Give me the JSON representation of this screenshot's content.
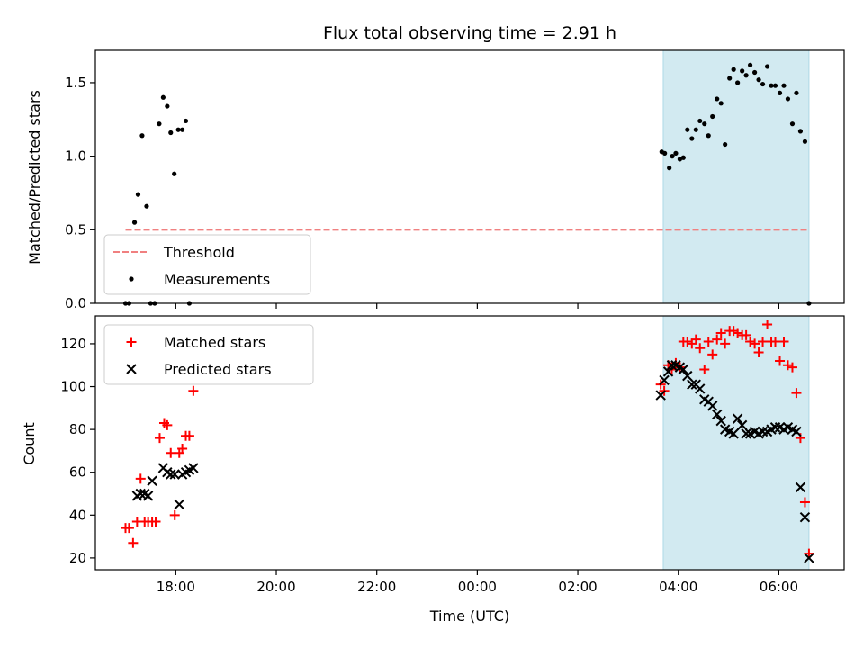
{
  "chart_data": {
    "title": "Flux total observing time = 2.91 h",
    "xlabel": "Time (UTC)",
    "x_ticks": [
      "18:00",
      "20:00",
      "22:00",
      "00:00",
      "02:00",
      "04:00",
      "06:00"
    ],
    "x_tick_hours": [
      18,
      20,
      22,
      24,
      26,
      28,
      30
    ],
    "xlim_hours": [
      16.4,
      31.3
    ],
    "x_unit_note": "hours UTC continuing past midnight",
    "shaded_region_hours": [
      27.7,
      30.6
    ],
    "shaded_color": "#add8e6",
    "panels": [
      {
        "type": "scatter",
        "ylabel": "Matched/Predicted stars",
        "ylim": [
          0,
          1.72
        ],
        "y_ticks": [
          0.0,
          0.5,
          1.0,
          1.5
        ],
        "y_tick_labels": [
          "0.0",
          "0.5",
          "1.0",
          "1.5"
        ],
        "threshold": {
          "name": "Threshold",
          "value": 0.5,
          "x_range_hours": [
            17.0,
            30.6
          ],
          "color": "#f08080"
        },
        "legend": {
          "position": "lower-left",
          "entries": [
            "Threshold",
            "Measurements"
          ]
        },
        "series": [
          {
            "name": "Measurements",
            "color": "#000000",
            "marker": "dot",
            "x": [
              17.0,
              17.07,
              17.18,
              17.25,
              17.33,
              17.42,
              17.5,
              17.58,
              17.67,
              17.75,
              17.83,
              17.9,
              17.97,
              18.05,
              18.13,
              18.2,
              18.27,
              27.67,
              27.73,
              27.82,
              27.88,
              27.95,
              28.03,
              28.1,
              28.18,
              28.27,
              28.35,
              28.43,
              28.52,
              28.6,
              28.68,
              28.77,
              28.85,
              28.93,
              29.02,
              29.1,
              29.18,
              29.27,
              29.35,
              29.43,
              29.52,
              29.6,
              29.68,
              29.77,
              29.85,
              29.93,
              30.02,
              30.1,
              30.18,
              30.27,
              30.35,
              30.43,
              30.52,
              30.6
            ],
            "y": [
              0.0,
              0.0,
              0.55,
              0.74,
              1.14,
              0.66,
              0.0,
              0.0,
              1.22,
              1.4,
              1.34,
              1.16,
              0.88,
              1.18,
              1.18,
              1.24,
              0,
              1.03,
              1.02,
              0.92,
              1.0,
              1.02,
              0.98,
              0.99,
              1.18,
              1.12,
              1.18,
              1.24,
              1.22,
              1.14,
              1.27,
              1.39,
              1.36,
              1.08,
              1.53,
              1.59,
              1.5,
              1.58,
              1.55,
              1.62,
              1.57,
              1.52,
              1.49,
              1.61,
              1.48,
              1.48,
              1.43,
              1.48,
              1.39,
              1.22,
              1.43,
              1.17,
              1.1,
              0
            ],
            "note": "placeholder"
          }
        ]
      },
      {
        "type": "scatter",
        "ylabel": "Count",
        "ylim": [
          14.5,
          133
        ],
        "y_ticks": [
          20,
          40,
          60,
          80,
          100,
          120
        ],
        "y_tick_labels": [
          "20",
          "40",
          "60",
          "80",
          "100",
          "120"
        ],
        "legend": {
          "position": "upper-left",
          "entries": [
            "Matched stars",
            "Predicted stars"
          ]
        },
        "series": [
          {
            "name": "Matched stars",
            "color": "#ff0000",
            "marker": "plus",
            "x": [
              17.0,
              17.07,
              17.15,
              17.23,
              17.3,
              17.38,
              17.45,
              17.53,
              17.6,
              17.68,
              17.77,
              17.83,
              17.9,
              17.98,
              18.07,
              18.13,
              18.2,
              18.27,
              18.35,
              27.65,
              27.72,
              27.8,
              27.87,
              27.95,
              28.03,
              28.1,
              28.18,
              28.27,
              28.35,
              28.43,
              28.52,
              28.6,
              28.68,
              28.77,
              28.85,
              28.93,
              29.02,
              29.1,
              29.18,
              29.27,
              29.35,
              29.43,
              29.52,
              29.6,
              29.68,
              29.77,
              29.85,
              29.93,
              30.02,
              30.1,
              30.18,
              30.27,
              30.35,
              30.43,
              30.52,
              30.6
            ],
            "y": [
              34,
              34,
              27,
              37,
              57,
              37,
              37,
              37,
              37,
              76,
              83,
              82,
              69,
              40,
              69,
              71,
              77,
              77,
              98,
              101,
              98,
              110,
              108,
              111,
              109,
              121,
              121,
              120,
              122,
              118,
              108,
              121,
              115,
              122,
              125,
              120,
              126,
              126,
              125,
              124,
              124,
              121,
              120,
              116,
              121,
              129,
              121,
              121,
              112,
              121,
              110,
              109,
              97,
              76,
              46,
              22
            ]
          },
          {
            "name": "Predicted stars",
            "color": "#000000",
            "marker": "cross",
            "x": [
              17.23,
              17.3,
              17.38,
              17.45,
              17.53,
              17.75,
              17.83,
              17.9,
              17.98,
              18.07,
              18.13,
              18.2,
              18.27,
              18.35,
              27.65,
              27.72,
              27.8,
              27.87,
              27.95,
              28.03,
              28.1,
              28.18,
              28.27,
              28.35,
              28.43,
              28.52,
              28.6,
              28.68,
              28.77,
              28.85,
              28.93,
              29.02,
              29.1,
              29.18,
              29.27,
              29.35,
              29.43,
              29.52,
              29.6,
              29.68,
              29.77,
              29.85,
              29.93,
              30.02,
              30.1,
              30.18,
              30.27,
              30.35,
              30.43,
              30.52,
              30.6
            ],
            "y": [
              49,
              50,
              50,
              49,
              56,
              62,
              60,
              59,
              59,
              45,
              59,
              60,
              61,
              62,
              96,
              103,
              107,
              110,
              110,
              109,
              108,
              105,
              101,
              101,
              99,
              94,
              93,
              91,
              87,
              84,
              80,
              79,
              78,
              85,
              82,
              78,
              78,
              79,
              78,
              79,
              79,
              80,
              81,
              81,
              80,
              81,
              80,
              79,
              53,
              39,
              20
            ]
          }
        ]
      }
    ]
  }
}
